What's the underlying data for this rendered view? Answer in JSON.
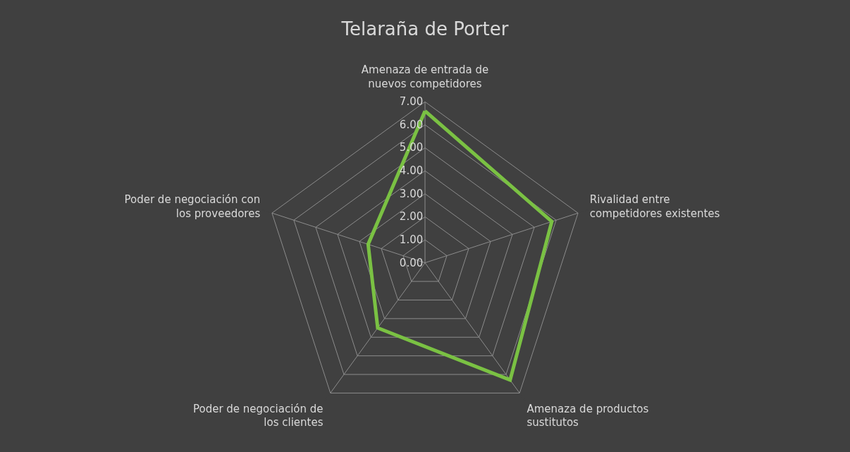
{
  "chart_data": {
    "type": "radar",
    "title": "Telaraña de Porter",
    "categories": [
      "Amenaza de entrada de nuevos competidores",
      "Rivalidad entre competidores existentes",
      "Amenaza de productos sustitutos",
      "Poder de negociación de los clientes",
      "Poder de negociación con los proveedores"
    ],
    "series": [
      {
        "color": "#7ac143",
        "values": [
          6.6,
          5.8,
          6.3,
          3.5,
          2.6
        ]
      }
    ],
    "ylim": [
      0,
      7
    ],
    "yticks": [
      {
        "value": 0,
        "label": "0.00"
      },
      {
        "value": 1,
        "label": "1.00"
      },
      {
        "value": 2,
        "label": "2.00"
      },
      {
        "value": 3,
        "label": "3.00"
      },
      {
        "value": 4,
        "label": "4.00"
      },
      {
        "value": 5,
        "label": "5.00"
      },
      {
        "value": 6,
        "label": "6.00"
      },
      {
        "value": 7,
        "label": "7.00"
      }
    ],
    "grid": true,
    "legend": false,
    "marker": "none",
    "line_style": "solid"
  }
}
